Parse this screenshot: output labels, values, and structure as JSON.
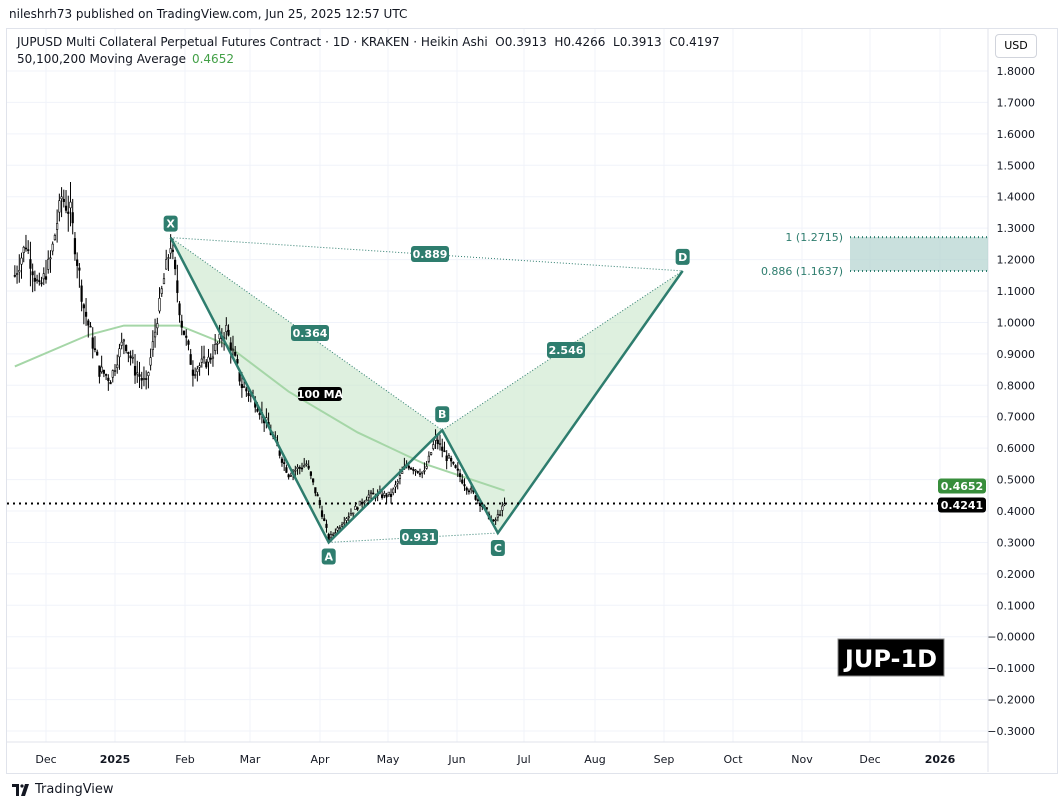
{
  "header": {
    "published": "nileshrh73 published on TradingView.com, Jun 25, 2025 12:57 UTC",
    "symbol_line": "JUPUSD Multi Collateral Perpetual Futures Contract · 1D · KRAKEN · Heikin Ashi  O0.3913  H0.4266  L0.3913  C0.4197",
    "ma_label": "50,100,200 Moving Average",
    "ma_value": "0.4652",
    "currency": "USD"
  },
  "footer": {
    "brand": "TradingView"
  },
  "chart_data": {
    "type": "candlestick",
    "y_ticks": [
      "1.8000",
      "1.7000",
      "1.6000",
      "1.5000",
      "1.4000",
      "1.3000",
      "1.2000",
      "1.1000",
      "1.0000",
      "0.9000",
      "0.8000",
      "0.7000",
      "0.6000",
      "0.5000",
      "0.4000",
      "0.3000",
      "0.2000",
      "0.1000",
      "−0.0000",
      "−0.1000",
      "−0.2000",
      "−0.3000"
    ],
    "ylim": [
      -0.3,
      1.8
    ],
    "x_ticks": [
      "Dec",
      "2025",
      "Feb",
      "Mar",
      "Apr",
      "May",
      "Jun",
      "Jul",
      "Aug",
      "Sep",
      "Oct",
      "Nov",
      "Dec",
      "2026"
    ],
    "price_path": [
      [
        "2024-11-17",
        1.15
      ],
      [
        "2024-11-22",
        1.25
      ],
      [
        "2024-11-28",
        1.1
      ],
      [
        "2024-12-03",
        1.2
      ],
      [
        "2024-12-08",
        1.4
      ],
      [
        "2024-12-12",
        1.35
      ],
      [
        "2024-12-18",
        1.05
      ],
      [
        "2024-12-25",
        0.85
      ],
      [
        "2024-12-30",
        0.82
      ],
      [
        "2025-01-05",
        0.95
      ],
      [
        "2025-01-10",
        0.85
      ],
      [
        "2025-01-15",
        0.8
      ],
      [
        "2025-01-22",
        1.1
      ],
      [
        "2025-01-26",
        1.25
      ],
      [
        "2025-01-31",
        1.0
      ],
      [
        "2025-02-05",
        0.85
      ],
      [
        "2025-02-12",
        0.88
      ],
      [
        "2025-02-20",
        0.98
      ],
      [
        "2025-02-27",
        0.8
      ],
      [
        "2025-03-05",
        0.75
      ],
      [
        "2025-03-12",
        0.65
      ],
      [
        "2025-03-20",
        0.52
      ],
      [
        "2025-03-28",
        0.55
      ],
      [
        "2025-04-03",
        0.42
      ],
      [
        "2025-04-07",
        0.31
      ],
      [
        "2025-04-15",
        0.38
      ],
      [
        "2025-04-25",
        0.45
      ],
      [
        "2025-05-05",
        0.45
      ],
      [
        "2025-05-12",
        0.55
      ],
      [
        "2025-05-20",
        0.52
      ],
      [
        "2025-05-25",
        0.63
      ],
      [
        "2025-06-01",
        0.55
      ],
      [
        "2025-06-08",
        0.48
      ],
      [
        "2025-06-15",
        0.42
      ],
      [
        "2025-06-20",
        0.36
      ],
      [
        "2025-06-25",
        0.42
      ]
    ],
    "ma_100": [
      [
        "2024-11-17",
        0.86
      ],
      [
        "2024-12-20",
        0.96
      ],
      [
        "2025-01-05",
        0.99
      ],
      [
        "2025-01-30",
        0.99
      ],
      [
        "2025-02-20",
        0.93
      ],
      [
        "2025-03-20",
        0.78
      ],
      [
        "2025-04-20",
        0.65
      ],
      [
        "2025-05-20",
        0.55
      ],
      [
        "2025-06-25",
        0.4652
      ]
    ],
    "ma_label": "100 MA",
    "pattern": {
      "points": [
        {
          "label": "X",
          "date": "2025-01-26",
          "price": 1.27
        },
        {
          "label": "A",
          "date": "2025-04-07",
          "price": 0.3
        },
        {
          "label": "B",
          "date": "2025-05-28",
          "price": 0.657
        },
        {
          "label": "C",
          "date": "2025-06-22",
          "price": 0.33
        },
        {
          "label": "D",
          "date": "2025-09-13",
          "price": 1.164
        }
      ],
      "ratios": {
        "XB": "0.364",
        "AC": "0.931",
        "BD": "2.546",
        "XD": "0.889"
      }
    },
    "prz": {
      "top_label": "1 (1.2715)",
      "bottom_label": "0.886 (1.1637)",
      "top": 1.2715,
      "bottom": 1.1637
    },
    "last_price": "0.4241",
    "ma_price": "0.4652",
    "watermark": "JUP-1D",
    "colors": {
      "pattern": "#2e7d6e",
      "fill": "#c8e6c9",
      "ma": "#a5d6a7",
      "ma_badge": "#388e3c",
      "prz": "#b2d3cf"
    }
  }
}
